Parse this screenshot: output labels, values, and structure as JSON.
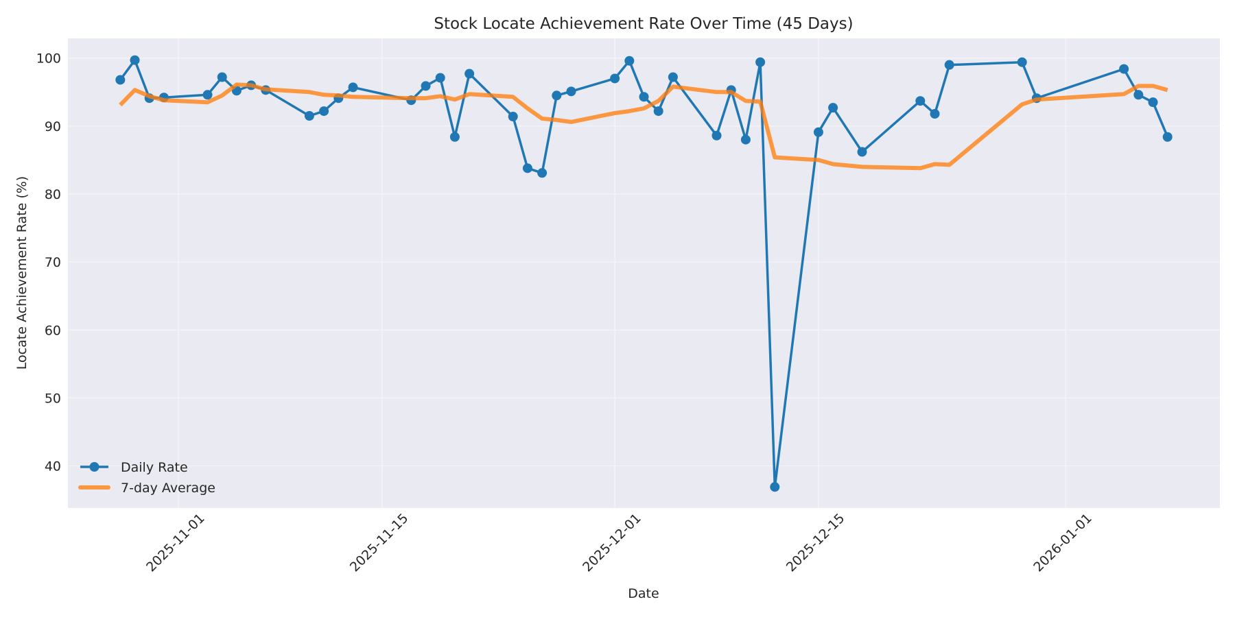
{
  "chart_data": {
    "type": "line",
    "title": "Stock Locate Achievement Rate Over Time (45 Days)",
    "xlabel": "Date",
    "ylabel": "Locate Achievement Rate (%)",
    "ylim": [
      33.8,
      102.9
    ],
    "xlim": [
      "2025-10-24",
      "2026-01-11"
    ],
    "yticks": [
      40,
      50,
      60,
      70,
      80,
      90,
      100
    ],
    "xticks": [
      "2025-11-01",
      "2025-11-15",
      "2025-12-01",
      "2025-12-15",
      "2026-01-01"
    ],
    "grid": true,
    "legend_position": "lower left",
    "x": [
      "2025-10-28",
      "2025-10-29",
      "2025-10-30",
      "2025-10-31",
      "2025-11-03",
      "2025-11-04",
      "2025-11-05",
      "2025-11-06",
      "2025-11-07",
      "2025-11-10",
      "2025-11-11",
      "2025-11-12",
      "2025-11-13",
      "2025-11-17",
      "2025-11-18",
      "2025-11-19",
      "2025-11-20",
      "2025-11-21",
      "2025-11-24",
      "2025-11-25",
      "2025-11-26",
      "2025-11-27",
      "2025-11-28",
      "2025-12-01",
      "2025-12-02",
      "2025-12-03",
      "2025-12-04",
      "2025-12-05",
      "2025-12-08",
      "2025-12-09",
      "2025-12-10",
      "2025-12-11",
      "2025-12-12",
      "2025-12-15",
      "2025-12-16",
      "2025-12-18",
      "2025-12-22",
      "2025-12-23",
      "2025-12-24",
      "2025-12-29",
      "2025-12-30",
      "2026-01-05",
      "2026-01-06",
      "2026-01-07",
      "2026-01-08"
    ],
    "series": [
      {
        "name": "Daily Rate",
        "color": "#1f77b4",
        "marker": "circle",
        "values": [
          96.8,
          99.7,
          94.1,
          94.2,
          94.6,
          97.2,
          95.2,
          96.0,
          95.3,
          91.5,
          92.2,
          94.1,
          95.7,
          93.8,
          95.9,
          97.1,
          88.4,
          97.7,
          91.4,
          83.8,
          83.1,
          94.5,
          95.1,
          97.0,
          99.6,
          94.3,
          92.2,
          97.2,
          88.6,
          95.3,
          88.0,
          99.4,
          36.9,
          89.1,
          92.7,
          86.2,
          93.7,
          91.8,
          99.0,
          99.4,
          94.1,
          98.4,
          94.6,
          93.5,
          88.4
        ]
      },
      {
        "name": "7-day Average",
        "color": "#ff7f0e",
        "marker": "none",
        "values": [
          93.1,
          95.3,
          94.4,
          93.8,
          93.5,
          94.5,
          96.1,
          96.0,
          95.4,
          95.0,
          94.6,
          94.5,
          94.3,
          94.1,
          94.1,
          94.4,
          93.9,
          94.7,
          94.3,
          92.6,
          91.1,
          90.9,
          90.6,
          91.9,
          92.2,
          92.6,
          93.7,
          95.8,
          95.0,
          95.0,
          93.7,
          93.6,
          85.4,
          85.0,
          84.4,
          84.0,
          83.8,
          84.4,
          84.3,
          93.2,
          93.9,
          94.7,
          95.9,
          95.9,
          95.3
        ]
      }
    ]
  },
  "style": {
    "plot_background": "#eaeaf2",
    "grid_color": "#f5f5f8",
    "text_color": "#262626"
  }
}
